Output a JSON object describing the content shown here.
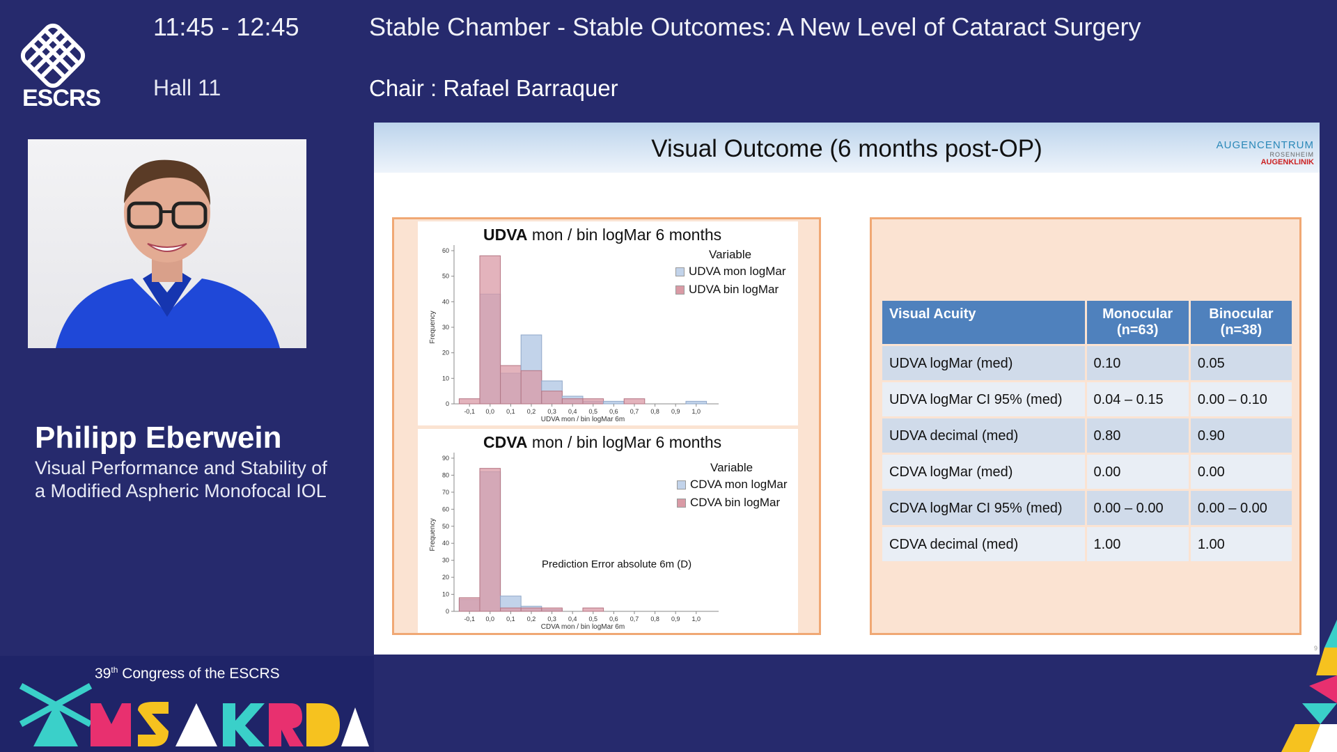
{
  "header": {
    "time": "11:45 - 12:45",
    "hall": "Hall 11",
    "session_title": "Stable Chamber - Stable Outcomes: A New Level of Cataract Surgery",
    "chair": "Chair : Rafael Barraquer"
  },
  "logo": {
    "text": "ESCRS"
  },
  "speaker": {
    "name": "Philipp Eberwein",
    "talk_line1": "Visual Performance and Stability of",
    "talk_line2": "a Modified Aspheric Monofocal IOL"
  },
  "congress": {
    "sup": "th",
    "num": "39",
    "text": " Congress of the ESCRS",
    "city": "AMSTERDAM"
  },
  "slide": {
    "title": "Visual Outcome (6 months post-OP)",
    "brand": {
      "line1": "AUGENCENTRUM",
      "line2": "ROSENHEIM",
      "line3": "AUGENKLINIK"
    },
    "page_number": "9",
    "colors": {
      "mon": "#c2d3ea",
      "bin": "#d99aa5",
      "header": "#4f81bd"
    }
  },
  "chart_data": [
    {
      "type": "bar",
      "title_bold": "UDVA",
      "title_rest": " mon / bin logMar 6 months",
      "xlabel": "UDVA mon / bin logMar 6m",
      "ylabel": "Frequency",
      "legend_title": "Variable",
      "x": [
        "-0,1",
        "0,0",
        "0,1",
        "0,2",
        "0,3",
        "0,4",
        "0,5",
        "0,6",
        "0,7",
        "0,8",
        "0,9",
        "1,0"
      ],
      "yticks": [
        0,
        10,
        20,
        30,
        40,
        50,
        60
      ],
      "ylim": [
        0,
        60
      ],
      "series": [
        {
          "name": "UDVA mon logMar",
          "values": [
            0,
            43,
            12,
            27,
            9,
            3,
            1,
            1,
            0,
            0,
            0,
            1
          ]
        },
        {
          "name": "UDVA bin logMar",
          "values": [
            2,
            58,
            15,
            13,
            5,
            2,
            2,
            0,
            2,
            0,
            0,
            0
          ]
        }
      ]
    },
    {
      "type": "bar",
      "title_bold": "CDVA",
      "title_rest": " mon / bin logMar 6 months",
      "xlabel": "CDVA mon / bin logMar 6m",
      "ylabel": "Frequency",
      "legend_title": "Variable",
      "annotation": "Prediction Error absolute 6m (D)",
      "x": [
        "-0,1",
        "0,0",
        "0,1",
        "0,2",
        "0,3",
        "0,4",
        "0,5",
        "0,6",
        "0,7",
        "0,8",
        "0,9",
        "1,0"
      ],
      "yticks": [
        0,
        10,
        20,
        30,
        40,
        50,
        60,
        70,
        80,
        90
      ],
      "ylim": [
        0,
        90
      ],
      "series": [
        {
          "name": "CDVA mon logMar",
          "values": [
            7,
            82,
            9,
            3,
            1,
            0,
            0,
            0,
            0,
            0,
            0,
            0
          ]
        },
        {
          "name": "CDVA bin logMar",
          "values": [
            8,
            84,
            2,
            2,
            2,
            0,
            2,
            0,
            0,
            0,
            0,
            0
          ]
        }
      ]
    }
  ],
  "table": {
    "headers": [
      "Visual Acuity",
      "Monocular (n=63)",
      "Binocular (n=38)"
    ],
    "header_monocular": [
      "Monocular",
      "(n=63)"
    ],
    "header_binocular": [
      "Binocular",
      "(n=38)"
    ],
    "rows": [
      [
        "UDVA logMar (med)",
        "0.10",
        "0.05"
      ],
      [
        "UDVA logMar CI 95% (med)",
        "0.04 – 0.15",
        "0.00 – 0.10"
      ],
      [
        "UDVA decimal (med)",
        "0.80",
        "0.90"
      ],
      [
        "CDVA logMar (med)",
        "0.00",
        "0.00"
      ],
      [
        "CDVA logMar CI 95% (med)",
        "0.00 – 0.00",
        "0.00 – 0.00"
      ],
      [
        "CDVA decimal (med)",
        "1.00",
        "1.00"
      ]
    ]
  }
}
